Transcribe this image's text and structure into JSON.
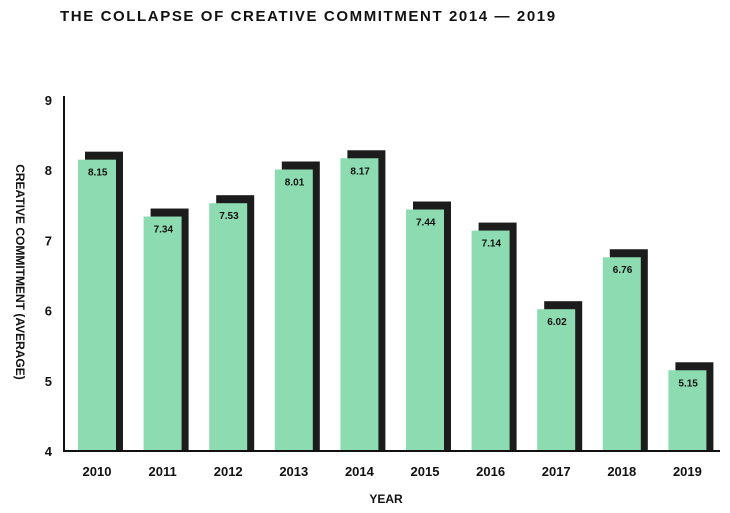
{
  "chart_data": {
    "type": "bar",
    "title": "THE COLLAPSE OF CREATIVE COMMITMENT 2014 — 2019",
    "xlabel": "YEAR",
    "ylabel": "CREATIVE COMMITMENT (AVERAGE)",
    "categories": [
      "2010",
      "2011",
      "2012",
      "2013",
      "2014",
      "2015",
      "2016",
      "2017",
      "2018",
      "2019"
    ],
    "values": [
      8.15,
      7.34,
      7.53,
      8.01,
      8.17,
      7.44,
      7.14,
      6.02,
      6.76,
      5.15
    ],
    "value_labels": [
      "8.15",
      "7.34",
      "7.53",
      "8.01",
      "8.17",
      "7.44",
      "7.14",
      "6.02",
      "6.76",
      "5.15"
    ],
    "ylim": [
      4,
      9
    ],
    "yticks": [
      "4",
      "5",
      "6",
      "7",
      "8",
      "9"
    ],
    "grid": false,
    "colors": {
      "bar": "#8ddbb1",
      "shadow": "#1c1c1c",
      "axis": "#111111"
    }
  }
}
